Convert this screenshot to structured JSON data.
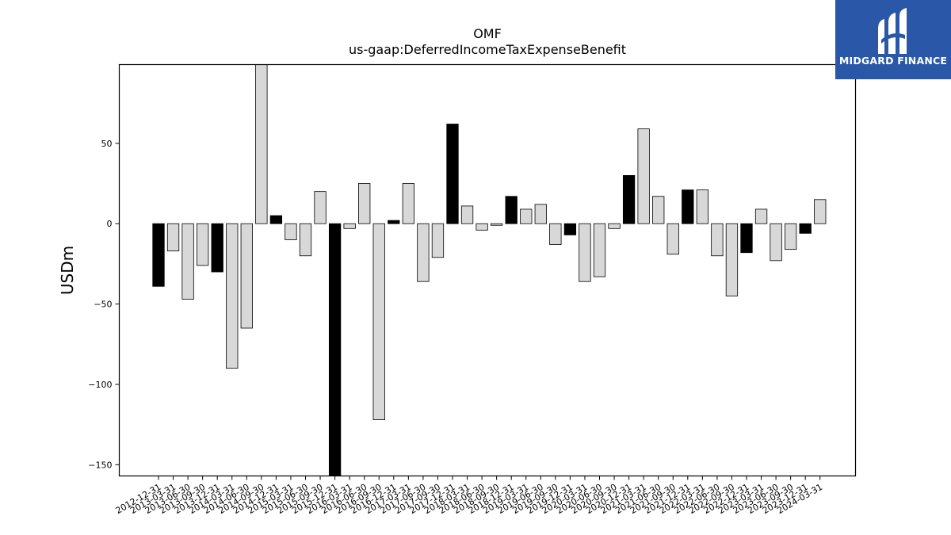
{
  "chart_data": {
    "type": "bar",
    "title": "OMF",
    "subtitle": "us-gaap:DeferredIncomeTaxExpenseBenefit",
    "xlabel": "",
    "ylabel": "USDm",
    "ylim": [
      -157,
      99
    ],
    "yticks": [
      50,
      0,
      -50,
      -100,
      -150
    ],
    "ytick_labels": [
      "50",
      "0",
      "−50",
      "−100",
      "−150"
    ],
    "grid": false,
    "categories": [
      "2012-12-31",
      "2013-03-31",
      "2013-06-30",
      "2013-09-30",
      "2013-12-31",
      "2014-03-31",
      "2014-06-30",
      "2014-09-30",
      "2014-12-31",
      "2015-03-31",
      "2015-06-30",
      "2015-09-30",
      "2015-12-31",
      "2016-03-31",
      "2016-06-30",
      "2016-09-30",
      "2016-12-31",
      "2017-03-31",
      "2017-06-30",
      "2017-09-30",
      "2017-12-31",
      "2018-03-31",
      "2018-06-30",
      "2018-09-30",
      "2018-12-31",
      "2019-03-31",
      "2019-06-30",
      "2019-09-30",
      "2019-12-31",
      "2020-03-31",
      "2020-06-30",
      "2020-09-30",
      "2020-12-31",
      "2021-03-31",
      "2021-06-30",
      "2021-09-30",
      "2021-12-31",
      "2022-03-31",
      "2022-06-30",
      "2022-09-30",
      "2022-12-31",
      "2023-03-31",
      "2023-06-30",
      "2023-09-30",
      "2023-12-31",
      "2024-03-31"
    ],
    "values": [
      -39,
      -17,
      -47,
      -26,
      -30,
      -90,
      -65,
      99,
      5,
      -10,
      -20,
      20,
      -160,
      -3,
      25,
      -122,
      2,
      25,
      -36,
      -21,
      62,
      11,
      -4,
      -1,
      17,
      9,
      12,
      -13,
      -7,
      -36,
      -33,
      -3,
      30,
      59,
      17,
      -19,
      21,
      21,
      -20,
      -45,
      -18,
      9,
      -23,
      -16,
      -6,
      15
    ],
    "quarter_end_flags": [
      1,
      0,
      0,
      0,
      1,
      0,
      0,
      0,
      1,
      0,
      0,
      0,
      1,
      0,
      0,
      0,
      1,
      0,
      0,
      0,
      1,
      0,
      0,
      0,
      1,
      0,
      0,
      0,
      1,
      0,
      0,
      0,
      1,
      0,
      0,
      0,
      1,
      0,
      0,
      0,
      1,
      0,
      0,
      0,
      1,
      0
    ],
    "colors": {
      "q4": "#000000",
      "other": "#d8d8d8",
      "edge": "#000000"
    }
  },
  "logo": {
    "text": "MIDGARD FINANCE",
    "background": "#2a57a8"
  }
}
